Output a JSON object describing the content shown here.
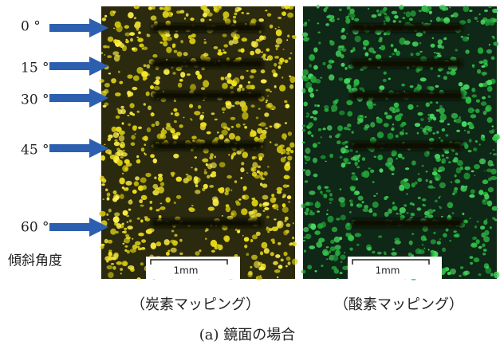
{
  "angle_labels": [
    "0 °",
    "15 °",
    "30 °",
    "45 °",
    "60 °"
  ],
  "angle_axis_label": "傾斜角度",
  "panels": [
    {
      "scale_bar": "1mm",
      "caption": "（炭素マッピング）"
    },
    {
      "scale_bar": "1mm",
      "caption": "（酸素マッピング）"
    }
  ],
  "figure_caption": "(a) 鏡面の場合"
}
